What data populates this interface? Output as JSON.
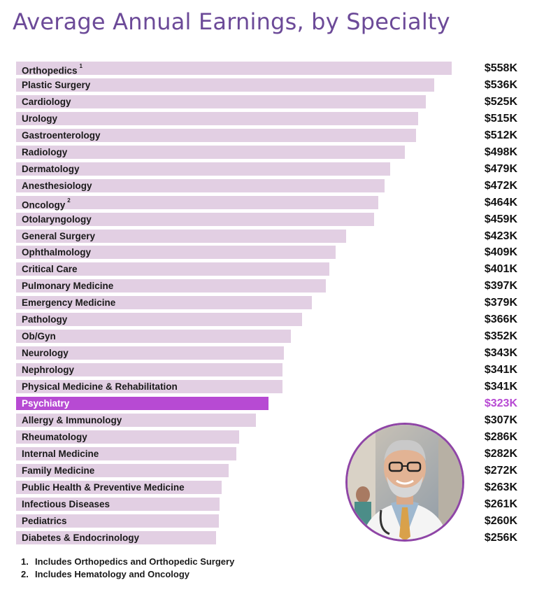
{
  "title": "Average Annual Earnings, by Specialty",
  "colors": {
    "bar": "#e2cfe3",
    "highlight": "#b74ad3",
    "title": "#6c4a98"
  },
  "chart_data": {
    "type": "bar",
    "orientation": "horizontal",
    "title": "Average Annual Earnings, by Specialty",
    "unit": "$K",
    "xlim": [
      0,
      600
    ],
    "grid": false,
    "highlight": "Psychiatry",
    "categories": [
      "Orthopedics",
      "Plastic Surgery",
      "Cardiology",
      "Urology",
      "Gastroenterology",
      "Radiology",
      "Dermatology",
      "Anesthesiology",
      "Oncology",
      "Otolaryngology",
      "General Surgery",
      "Ophthalmology",
      "Critical Care",
      "Pulmonary Medicine",
      "Emergency Medicine",
      "Pathology",
      "Ob/Gyn",
      "Neurology",
      "Nephrology",
      "Physical Medicine & Rehabilitation",
      "Psychiatry",
      "Allergy & Immunology",
      "Rheumatology",
      "Internal Medicine",
      "Family Medicine",
      "Public Health & Preventive Medicine",
      "Infectious Diseases",
      "Pediatrics",
      "Diabetes & Endocrinology"
    ],
    "footnote_marks": {
      "Orthopedics": "1",
      "Oncology": "2"
    },
    "values": [
      558,
      536,
      525,
      515,
      512,
      498,
      479,
      472,
      464,
      459,
      423,
      409,
      401,
      397,
      379,
      366,
      352,
      343,
      341,
      341,
      323,
      307,
      286,
      282,
      272,
      263,
      261,
      260,
      256
    ],
    "value_labels": [
      "$558K",
      "$536K",
      "$525K",
      "$515K",
      "$512K",
      "$498K",
      "$479K",
      "$472K",
      "$464K",
      "$459K",
      "$423K",
      "$409K",
      "$401K",
      "$397K",
      "$379K",
      "$366K",
      "$352K",
      "$343K",
      "$341K",
      "$341K",
      "$323K",
      "$307K",
      "$286K",
      "$282K",
      "$272K",
      "$263K",
      "$261K",
      "$260K",
      "$256K"
    ]
  },
  "footnotes": [
    {
      "num": "1.",
      "text": "Includes Orthopedics and Orthopedic Surgery"
    },
    {
      "num": "2.",
      "text": "Includes Hematology and Oncology"
    }
  ],
  "photo": {
    "subject": "doctor-portrait"
  }
}
